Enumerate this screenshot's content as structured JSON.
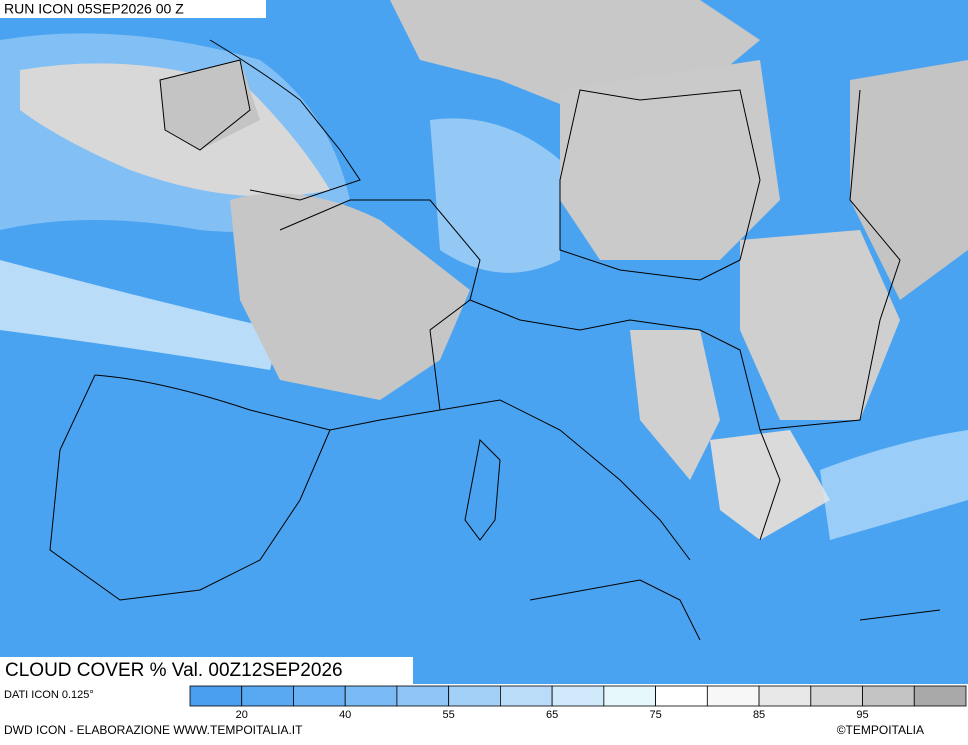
{
  "header": {
    "run": "RUN ICON 05SEP2026 00 Z"
  },
  "caption": {
    "title": "CLOUD COVER % Val. 00Z12SEP2026"
  },
  "legend": {
    "source": "DATI ICON 0.125°",
    "colors": [
      "#4a9ff0",
      "#58a8f2",
      "#68b1f4",
      "#7abbf5",
      "#8ec5f6",
      "#a3d0f7",
      "#badcf9",
      "#d0e9fb",
      "#e6f8fb",
      "#ffffff",
      "#f7f7f7",
      "#e8e8e8",
      "#d6d6d6",
      "#c4c4c4",
      "#a9a9a9"
    ],
    "ticks": [
      20,
      40,
      55,
      65,
      75,
      85,
      95
    ]
  },
  "footer": {
    "credit": "DWD ICON - ELABORAZIONE WWW.TEMPOITALIA.IT",
    "copyright": "©TEMPOITALIA"
  }
}
